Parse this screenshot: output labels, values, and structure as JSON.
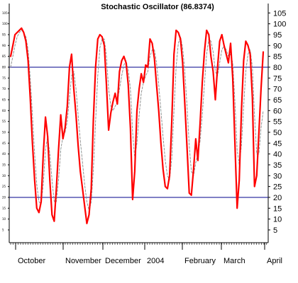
{
  "chart_data": {
    "type": "line",
    "title": "Stochastic Oscillator (86.8374)",
    "ylim": [
      0,
      105
    ],
    "right_ticks": [
      "5",
      "10",
      "15",
      "20",
      "25",
      "30",
      "35",
      "40",
      "45",
      "50",
      "55",
      "60",
      "65",
      "70",
      "75",
      "80",
      "85",
      "90",
      "95",
      "100",
      "105"
    ],
    "left_ticks": [
      "5",
      "10",
      "15",
      "20",
      "25",
      "30",
      "35",
      "40",
      "45",
      "50",
      "55",
      "60",
      "65",
      "70",
      "75",
      "80",
      "85",
      "90",
      "95",
      "100",
      "105"
    ],
    "months": [
      "October",
      "November",
      "December",
      "2004",
      "February",
      "March",
      "April"
    ],
    "reference_lines": [
      80,
      20
    ],
    "colors": {
      "k_line": "#ff0000",
      "d_line": "#888888",
      "reference": "#00008b",
      "axis": "#000000"
    },
    "series": [
      {
        "values": [
          85,
          90,
          95,
          96,
          97,
          98,
          96,
          92,
          83,
          66,
          45,
          28,
          15,
          13,
          18,
          40,
          57,
          48,
          28,
          12,
          9,
          24,
          42,
          58,
          47,
          52,
          62,
          80,
          86,
          70,
          58,
          44,
          32,
          24,
          16,
          8,
          12,
          24,
          56,
          80,
          93,
          95,
          94,
          90,
          72,
          51,
          59,
          64,
          68,
          63,
          78,
          83,
          85,
          82,
          72,
          52,
          19,
          32,
          60,
          70,
          77,
          73,
          81,
          80,
          93,
          91,
          84,
          72,
          60,
          45,
          33,
          25,
          24,
          30,
          55,
          86,
          97,
          96,
          93,
          82,
          63,
          43,
          22,
          21,
          33,
          47,
          37,
          54,
          73,
          87,
          97,
          95,
          85,
          78,
          65,
          80,
          92,
          95,
          90,
          86,
          82,
          91,
          75,
          45,
          15,
          28,
          60,
          83,
          92,
          90,
          86,
          66,
          25,
          30,
          50,
          70,
          87
        ]
      },
      {
        "values": [
          80,
          85,
          90,
          94,
          96,
          97,
          96,
          94,
          88,
          75,
          58,
          40,
          26,
          18,
          17,
          26,
          42,
          48,
          40,
          28,
          18,
          18,
          28,
          42,
          48,
          50,
          55,
          66,
          76,
          78,
          70,
          58,
          46,
          36,
          26,
          18,
          14,
          18,
          33,
          55,
          76,
          89,
          93,
          93,
          85,
          70,
          62,
          60,
          62,
          64,
          70,
          76,
          81,
          83,
          79,
          70,
          50,
          38,
          45,
          58,
          68,
          73,
          76,
          78,
          85,
          88,
          88,
          82,
          72,
          60,
          48,
          37,
          30,
          28,
          38,
          60,
          80,
          91,
          94,
          89,
          78,
          62,
          44,
          32,
          30,
          36,
          40,
          46,
          58,
          72,
          86,
          93,
          92,
          87,
          78,
          76,
          82,
          88,
          90,
          88,
          85,
          86,
          82,
          64,
          42,
          35,
          44,
          62,
          78,
          86,
          88,
          80,
          58,
          40,
          40,
          52,
          60
        ]
      }
    ]
  }
}
